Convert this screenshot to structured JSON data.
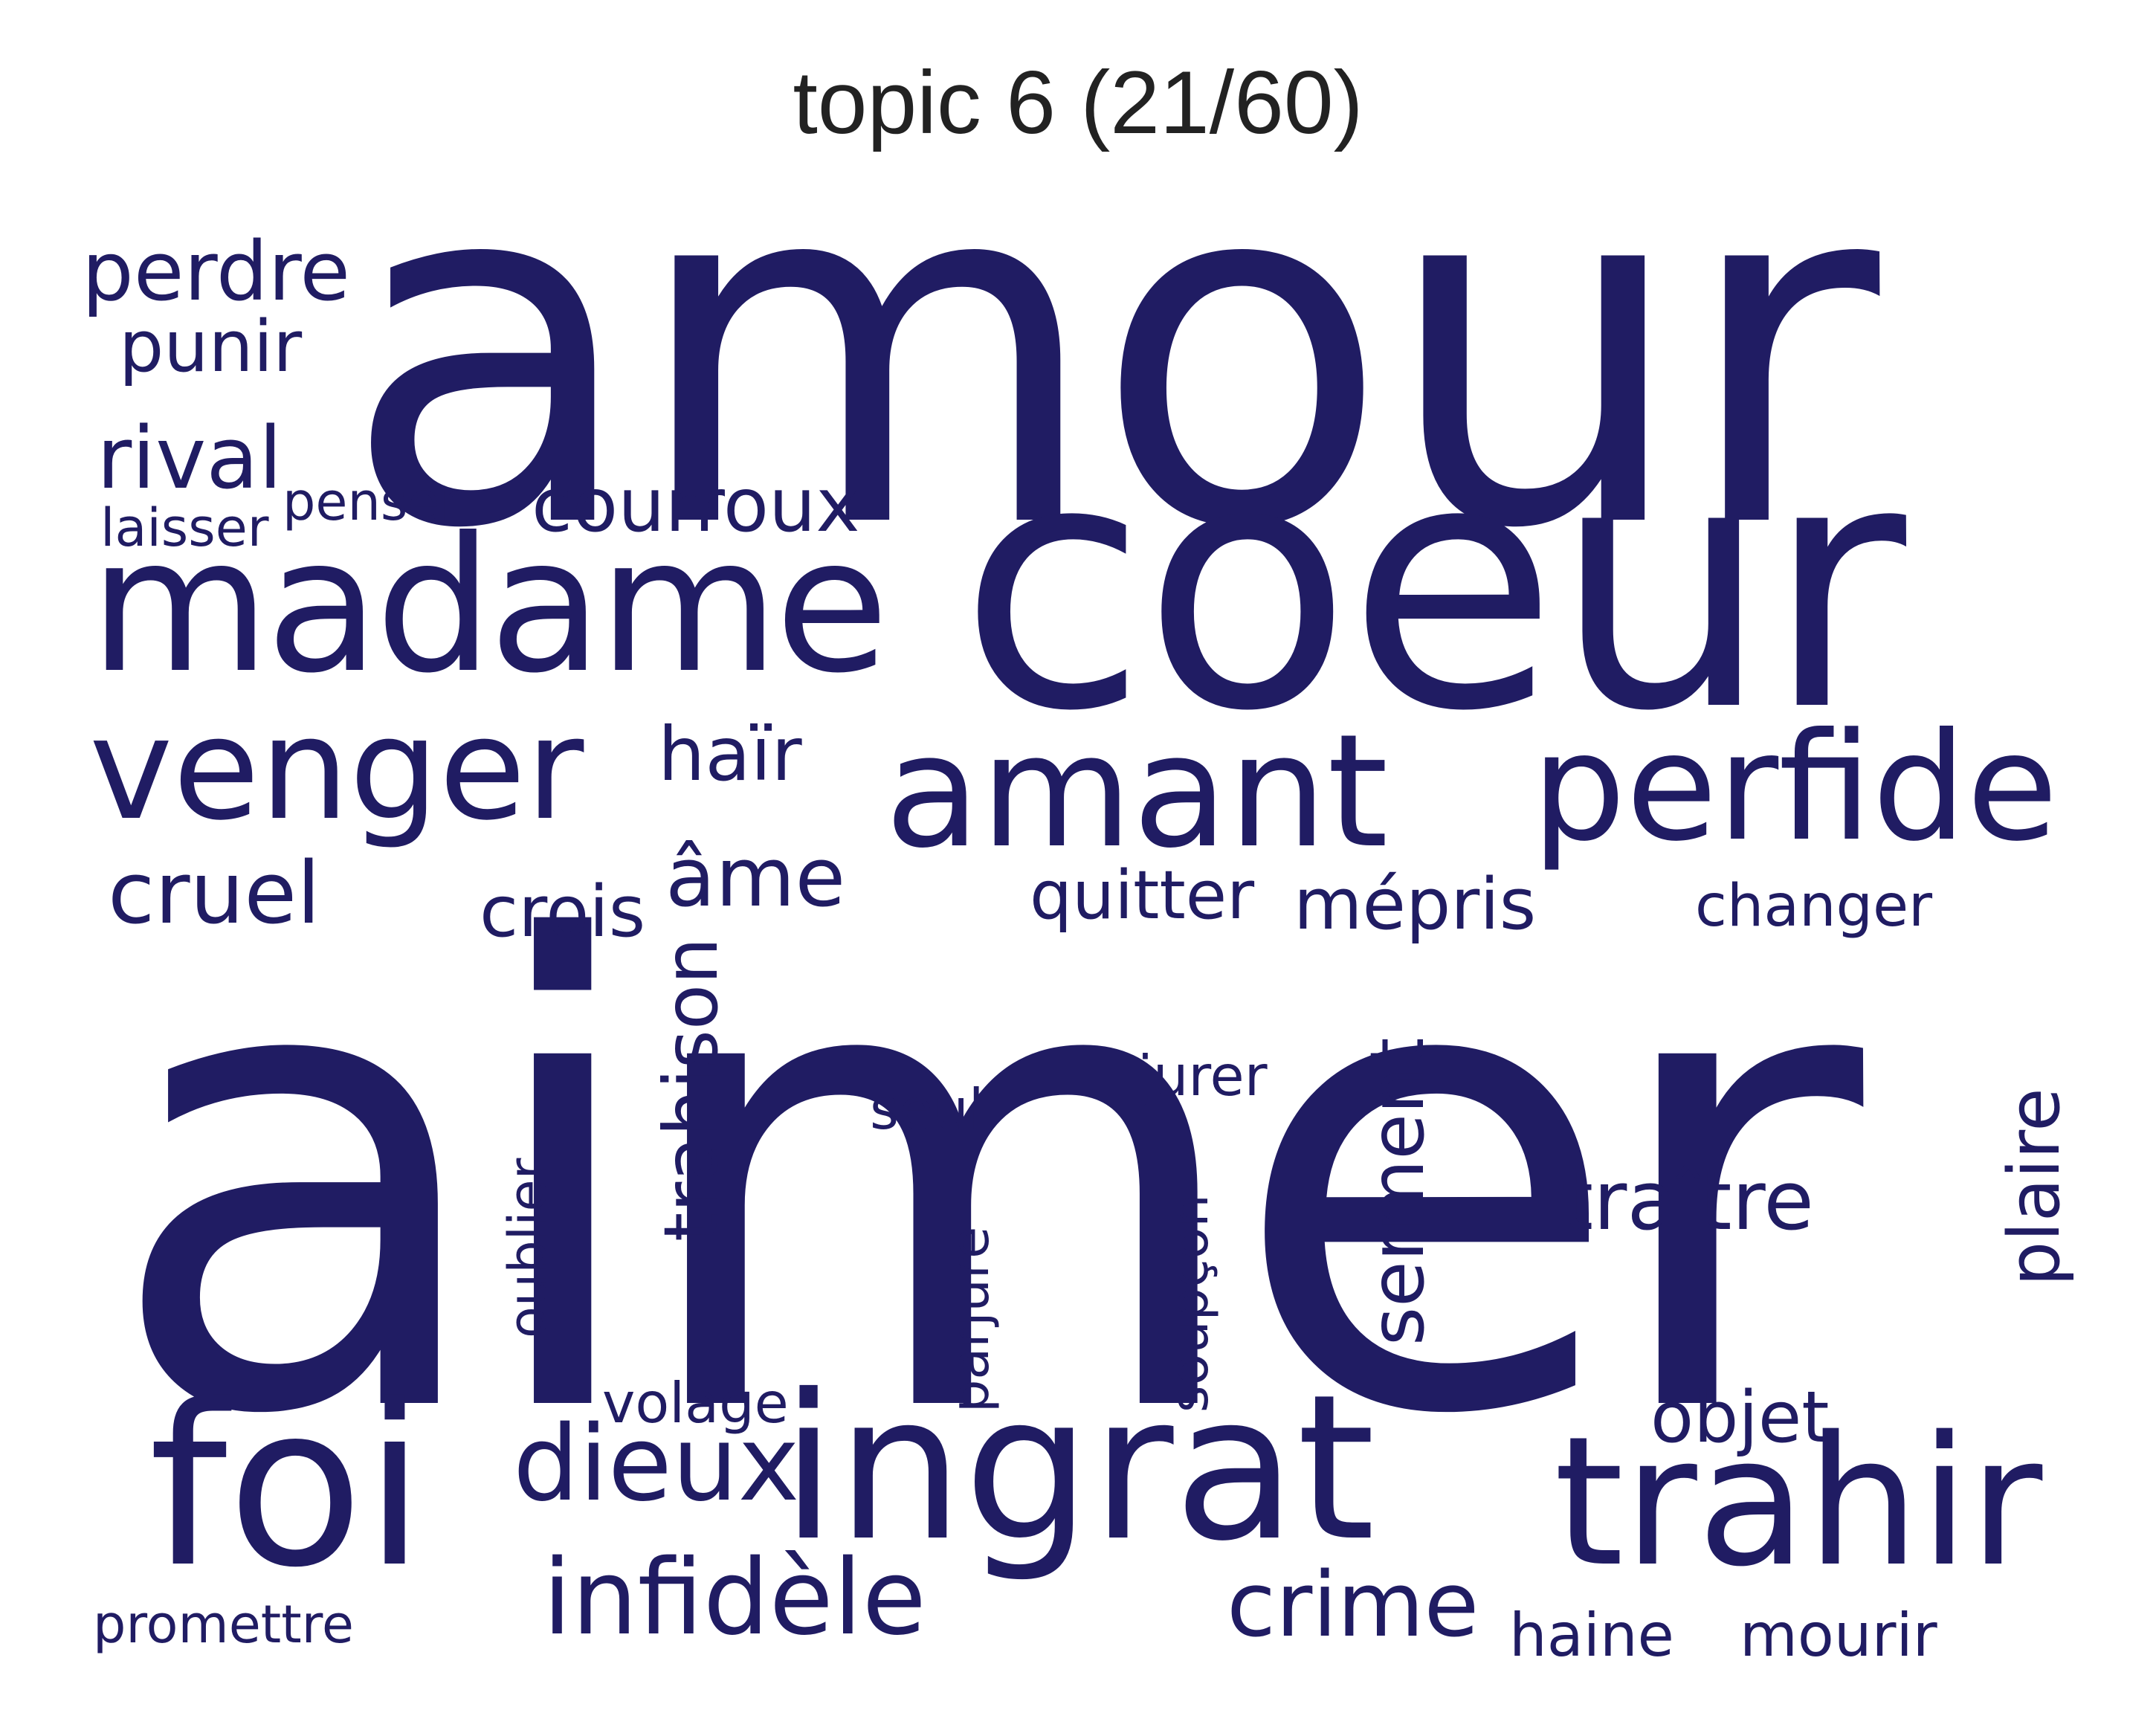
{
  "title": "topic 6 (21/60)",
  "word_color": "#201c63",
  "words": {
    "amour": "amour",
    "aimer": "aimer",
    "coeur": "coeur",
    "madame": "madame",
    "venger": "venger",
    "amant": "amant",
    "perfide": "perfide",
    "ingrat": "ingrat",
    "trahir": "trahir",
    "foi": "foi",
    "infidele": "infidèle",
    "dieux": "dieux",
    "crime": "crime",
    "traitre": "traître",
    "trahison": "trahison",
    "serment": "serment",
    "plaire": "plaire",
    "perdre": "perdre",
    "punir": "punir",
    "rival": "rival",
    "laisser": "laisser",
    "penser": "penser",
    "courroux": "courroux",
    "hair": "haïr",
    "cruel": "cruel",
    "crois": "crois",
    "ame": "âme",
    "quitter": "quitter",
    "mepris": "mépris",
    "changer": "changer",
    "jurer": "jurer",
    "seul": "seul",
    "oublier": "oublier",
    "parjure": "parjure",
    "soupcon": "soupçon",
    "volage": "volage",
    "objet": "objet",
    "promettre": "promettre",
    "haine": "haine",
    "mourir": "mourir"
  }
}
